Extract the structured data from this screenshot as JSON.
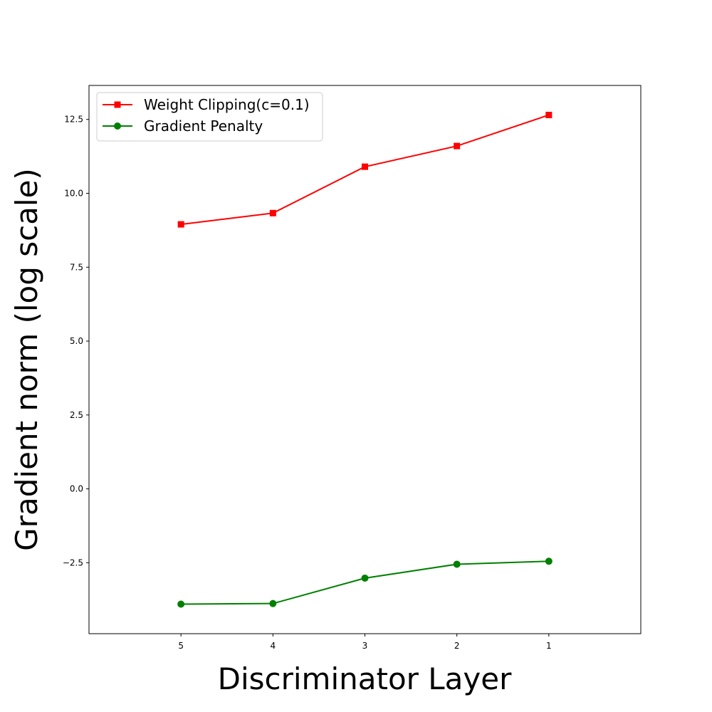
{
  "chart_data": {
    "type": "line",
    "title": "",
    "xlabel": "Discriminator Layer",
    "ylabel": "Gradient norm (log scale)",
    "x": [
      5,
      4,
      3,
      2,
      1
    ],
    "x_tick_labels": [
      "5",
      "4",
      "3",
      "2",
      "1"
    ],
    "x_axis_inverted": true,
    "xlim": [
      6,
      0
    ],
    "ylim": [
      -4.9,
      13.65
    ],
    "y_ticks": [
      -2.5,
      0.0,
      2.5,
      5.0,
      7.5,
      10.0,
      12.5
    ],
    "y_tick_labels": [
      "−2.5",
      "0.0",
      "2.5",
      "5.0",
      "7.5",
      "10.0",
      "12.5"
    ],
    "grid": false,
    "legend_position": "top-left",
    "series": [
      {
        "name": "Weight Clipping(c=0.1)",
        "color": "#ff0000",
        "marker": "square",
        "values": [
          8.95,
          9.33,
          10.9,
          11.6,
          12.65
        ]
      },
      {
        "name": "Gradient Penalty",
        "color": "#008000",
        "marker": "circle",
        "values": [
          -3.9,
          -3.88,
          -3.02,
          -2.55,
          -2.45
        ]
      }
    ]
  }
}
